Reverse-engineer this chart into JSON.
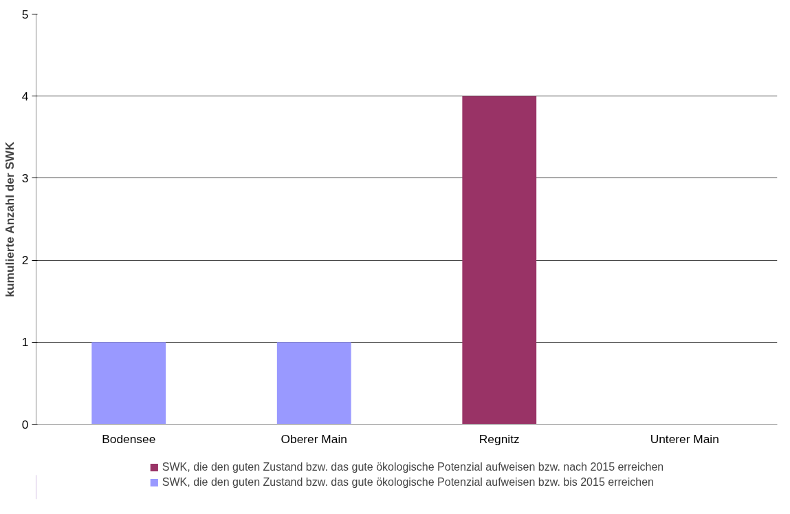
{
  "chart_data": {
    "type": "bar",
    "stacked": true,
    "ylabel": "kumulierte Anzahl der SWK",
    "categories": [
      "Bodensee",
      "Oberer Main",
      "Regnitz",
      "Unterer Main"
    ],
    "series": [
      {
        "name": "SWK, die den guten Zustand bzw. das gute ökologische Potenzial aufweisen bzw. bis 2015 erreichen",
        "color": "#9999ff",
        "values": [
          1,
          1,
          0,
          0
        ]
      },
      {
        "name": "SWK, die den guten Zustand bzw. das gute ökologische Potenzial aufweisen bzw. nach 2015 erreichen",
        "color": "#993366",
        "values": [
          0,
          0,
          4,
          0
        ]
      }
    ],
    "ylim": [
      0,
      5
    ],
    "yticks": [
      0,
      1,
      2,
      3,
      4,
      5
    ],
    "grid": "y",
    "legend": "bottom"
  }
}
